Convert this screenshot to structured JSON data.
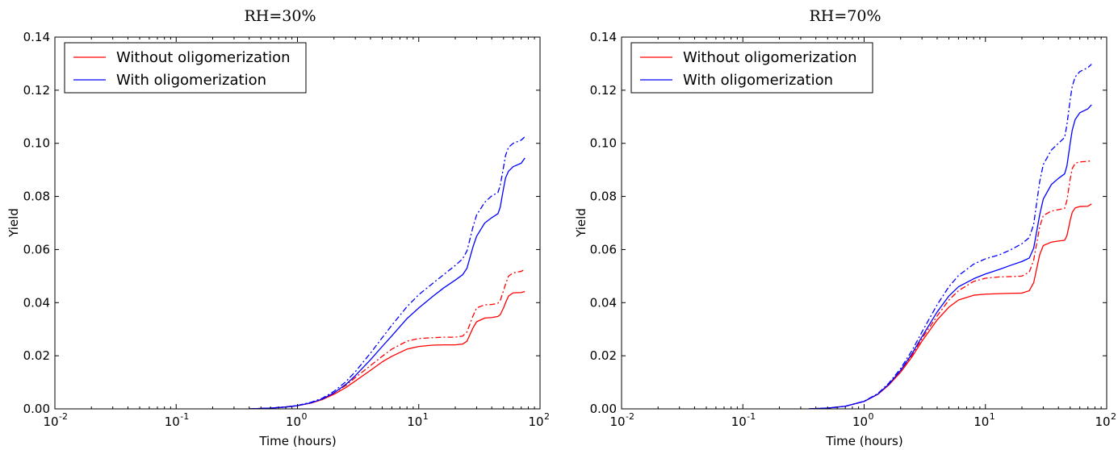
{
  "chart_data": [
    {
      "type": "line",
      "title": "RH=30%",
      "xlabel": "Time (hours)",
      "ylabel": "Yield",
      "xscale": "log",
      "xlim": [
        0.01,
        100
      ],
      "ylim": [
        0,
        0.14
      ],
      "xticks": [
        {
          "base": "10",
          "exp": "-2"
        },
        {
          "base": "10",
          "exp": "-1"
        },
        {
          "base": "10",
          "exp": "0"
        },
        {
          "base": "10",
          "exp": "1"
        },
        {
          "base": "10",
          "exp": "2"
        }
      ],
      "yticks": [
        "0.00",
        "0.02",
        "0.04",
        "0.06",
        "0.08",
        "0.10",
        "0.12",
        "0.14"
      ],
      "legend": {
        "placement": "top-left",
        "entries": [
          {
            "label": "Without oligomerization",
            "color": "#ff0000"
          },
          {
            "label": "With oligomerization",
            "color": "#0000ff"
          }
        ]
      },
      "series": [
        {
          "color": "#ff0000",
          "style": "solid",
          "x": [
            0.4,
            0.6,
            0.8,
            1.0,
            1.3,
            1.6,
            2.0,
            2.5,
            3.0,
            4.0,
            5.0,
            6.0,
            8.0,
            10,
            13,
            16,
            20,
            23,
            25,
            28,
            30,
            35,
            40,
            45,
            47,
            50,
            52,
            55,
            60,
            70,
            75
          ],
          "y": [
            0.0,
            0.0003,
            0.0007,
            0.0012,
            0.0022,
            0.0035,
            0.0055,
            0.008,
            0.0105,
            0.0145,
            0.0177,
            0.0198,
            0.0225,
            0.0235,
            0.024,
            0.0241,
            0.0241,
            0.0244,
            0.0255,
            0.0305,
            0.0328,
            0.0342,
            0.0344,
            0.0348,
            0.0355,
            0.038,
            0.04,
            0.0425,
            0.0437,
            0.0438,
            0.0442
          ]
        },
        {
          "color": "#ff0000",
          "style": "dashdot",
          "x": [
            0.4,
            0.6,
            0.8,
            1.0,
            1.3,
            1.6,
            2.0,
            2.5,
            3.0,
            4.0,
            5.0,
            6.0,
            8.0,
            10,
            13,
            16,
            20,
            23,
            25,
            28,
            30,
            35,
            40,
            45,
            47,
            50,
            52,
            55,
            60,
            70,
            75
          ],
          "y": [
            0.0,
            0.0003,
            0.0007,
            0.0013,
            0.0024,
            0.0038,
            0.006,
            0.0088,
            0.0118,
            0.0163,
            0.0198,
            0.0225,
            0.0255,
            0.0265,
            0.0268,
            0.027,
            0.027,
            0.0274,
            0.029,
            0.035,
            0.038,
            0.0392,
            0.0393,
            0.0398,
            0.0408,
            0.0445,
            0.047,
            0.05,
            0.0512,
            0.0518,
            0.0525
          ]
        },
        {
          "color": "#0000ff",
          "style": "solid",
          "x": [
            0.4,
            0.6,
            0.8,
            1.0,
            1.3,
            1.6,
            2.0,
            2.5,
            3.0,
            4.0,
            5.0,
            6.0,
            8.0,
            10,
            13,
            16,
            20,
            23,
            25,
            28,
            30,
            35,
            40,
            45,
            47,
            50,
            52,
            55,
            60,
            70,
            75
          ],
          "y": [
            0.0,
            0.0003,
            0.0007,
            0.0012,
            0.0023,
            0.0037,
            0.006,
            0.0092,
            0.0125,
            0.0185,
            0.0235,
            0.0275,
            0.034,
            0.038,
            0.0423,
            0.0455,
            0.0485,
            0.0505,
            0.053,
            0.061,
            0.065,
            0.07,
            0.072,
            0.0735,
            0.076,
            0.083,
            0.087,
            0.0895,
            0.0912,
            0.0925,
            0.0945
          ]
        },
        {
          "color": "#0000ff",
          "style": "dashdot",
          "x": [
            0.4,
            0.6,
            0.8,
            1.0,
            1.3,
            1.6,
            2.0,
            2.5,
            3.0,
            4.0,
            5.0,
            6.0,
            8.0,
            10,
            13,
            16,
            20,
            23,
            25,
            28,
            30,
            35,
            40,
            45,
            47,
            50,
            52,
            55,
            60,
            70,
            75
          ],
          "y": [
            0.0,
            0.0003,
            0.0007,
            0.0013,
            0.0025,
            0.004,
            0.0066,
            0.0102,
            0.014,
            0.021,
            0.0268,
            0.0315,
            0.0385,
            0.043,
            0.0472,
            0.0505,
            0.054,
            0.0565,
            0.0595,
            0.0685,
            0.073,
            0.0778,
            0.0802,
            0.0815,
            0.0842,
            0.091,
            0.0955,
            0.0985,
            0.1,
            0.1012,
            0.1025
          ]
        }
      ]
    },
    {
      "type": "line",
      "title": "RH=70%",
      "xlabel": "Time (hours)",
      "ylabel": "Yield",
      "xscale": "log",
      "xlim": [
        0.01,
        100
      ],
      "ylim": [
        0,
        0.14
      ],
      "xticks": [
        {
          "base": "10",
          "exp": "-2"
        },
        {
          "base": "10",
          "exp": "-1"
        },
        {
          "base": "10",
          "exp": "0"
        },
        {
          "base": "10",
          "exp": "1"
        },
        {
          "base": "10",
          "exp": "2"
        }
      ],
      "yticks": [
        "0.00",
        "0.02",
        "0.04",
        "0.06",
        "0.08",
        "0.10",
        "0.12",
        "0.14"
      ],
      "legend": {
        "placement": "top-left",
        "entries": [
          {
            "label": "Without oligomerization",
            "color": "#ff0000"
          },
          {
            "label": "With oligomerization",
            "color": "#0000ff"
          }
        ]
      },
      "series": [
        {
          "color": "#ff0000",
          "style": "solid",
          "x": [
            0.35,
            0.5,
            0.7,
            1.0,
            1.3,
            1.6,
            2.0,
            2.5,
            3.0,
            4.0,
            5.0,
            6.0,
            8.0,
            10,
            13,
            16,
            20,
            23,
            25,
            28,
            30,
            35,
            40,
            45,
            47,
            50,
            52,
            55,
            60,
            70,
            75
          ],
          "y": [
            0.0,
            0.0003,
            0.001,
            0.0028,
            0.0055,
            0.009,
            0.0138,
            0.0198,
            0.0255,
            0.0335,
            0.0383,
            0.041,
            0.0428,
            0.0432,
            0.0434,
            0.0435,
            0.0436,
            0.0445,
            0.0475,
            0.058,
            0.0615,
            0.0628,
            0.0632,
            0.0635,
            0.0652,
            0.071,
            0.074,
            0.0757,
            0.0762,
            0.0763,
            0.0772
          ]
        },
        {
          "color": "#ff0000",
          "style": "dashdot",
          "x": [
            0.35,
            0.5,
            0.7,
            1.0,
            1.3,
            1.6,
            2.0,
            2.5,
            3.0,
            4.0,
            5.0,
            6.0,
            8.0,
            10,
            13,
            16,
            20,
            23,
            25,
            28,
            30,
            35,
            40,
            45,
            47,
            50,
            52,
            55,
            60,
            70,
            75
          ],
          "y": [
            0.0,
            0.0003,
            0.001,
            0.0028,
            0.0055,
            0.0092,
            0.0142,
            0.0205,
            0.0265,
            0.035,
            0.041,
            0.0445,
            0.048,
            0.0492,
            0.0497,
            0.0498,
            0.05,
            0.0515,
            0.056,
            0.0685,
            0.0728,
            0.0745,
            0.075,
            0.0755,
            0.0785,
            0.0865,
            0.0905,
            0.0925,
            0.093,
            0.0932,
            0.0935
          ]
        },
        {
          "color": "#0000ff",
          "style": "solid",
          "x": [
            0.35,
            0.5,
            0.7,
            1.0,
            1.3,
            1.6,
            2.0,
            2.5,
            3.0,
            4.0,
            5.0,
            6.0,
            8.0,
            10,
            13,
            16,
            20,
            23,
            25,
            28,
            30,
            35,
            40,
            45,
            47,
            50,
            52,
            55,
            60,
            70,
            75
          ],
          "y": [
            0.0,
            0.0003,
            0.001,
            0.0028,
            0.0056,
            0.0093,
            0.0145,
            0.021,
            0.0272,
            0.0365,
            0.0425,
            0.046,
            0.049,
            0.0508,
            0.0525,
            0.054,
            0.0555,
            0.0568,
            0.0605,
            0.073,
            0.079,
            0.0845,
            0.0868,
            0.0885,
            0.0915,
            0.1,
            0.105,
            0.109,
            0.1115,
            0.113,
            0.1145
          ]
        },
        {
          "color": "#0000ff",
          "style": "dashdot",
          "x": [
            0.35,
            0.5,
            0.7,
            1.0,
            1.3,
            1.6,
            2.0,
            2.5,
            3.0,
            4.0,
            5.0,
            6.0,
            8.0,
            10,
            13,
            16,
            20,
            23,
            25,
            28,
            30,
            35,
            40,
            45,
            47,
            50,
            52,
            55,
            60,
            70,
            75
          ],
          "y": [
            0.0,
            0.0003,
            0.001,
            0.0029,
            0.0058,
            0.0097,
            0.0152,
            0.0222,
            0.029,
            0.0392,
            0.046,
            0.0502,
            0.0545,
            0.0565,
            0.058,
            0.0598,
            0.0622,
            0.0645,
            0.0695,
            0.0855,
            0.092,
            0.0975,
            0.1,
            0.1022,
            0.107,
            0.1165,
            0.1215,
            0.125,
            0.127,
            0.1285,
            0.1298
          ]
        }
      ]
    }
  ]
}
